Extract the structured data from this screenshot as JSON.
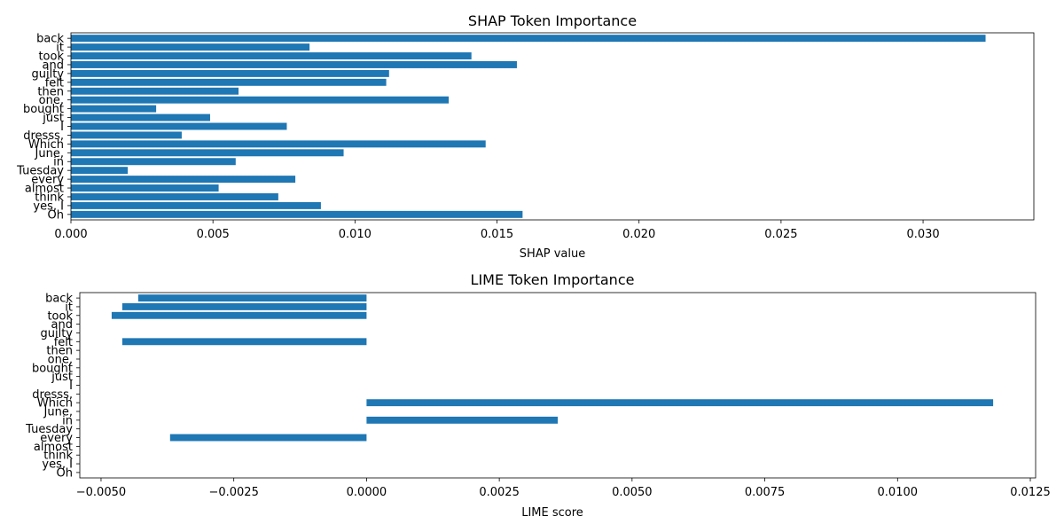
{
  "chart_data": [
    {
      "type": "bar",
      "orientation": "horizontal",
      "title": "SHAP Token Importance",
      "xlabel": "SHAP value",
      "ylabel": "",
      "xlim": [
        0,
        0.0339
      ],
      "xticks": [
        0.0,
        0.005,
        0.01,
        0.015,
        0.02,
        0.025,
        0.03
      ],
      "xtick_labels": [
        "0.000",
        "0.005",
        "0.010",
        "0.015",
        "0.020",
        "0.025",
        "0.030"
      ],
      "grid": false,
      "bar_color": "#1f77b4",
      "categories": [
        "back",
        "it",
        "took",
        "and",
        "guilty",
        "felt",
        "then",
        "one,",
        "bought",
        "just",
        "I",
        "dresss,",
        "Which",
        "June,",
        "in",
        "Tuesday",
        "every",
        "almost",
        "think",
        "yes, I",
        "Oh"
      ],
      "values": [
        0.0322,
        0.0084,
        0.0141,
        0.0157,
        0.0112,
        0.0111,
        0.0059,
        0.0133,
        0.003,
        0.0049,
        0.0076,
        0.0039,
        0.0146,
        0.0096,
        0.0058,
        0.002,
        0.0079,
        0.0052,
        0.0073,
        0.0088,
        0.0159
      ]
    },
    {
      "type": "bar",
      "orientation": "horizontal",
      "title": "LIME Token Importance",
      "xlabel": "LIME score",
      "ylabel": "",
      "xlim": [
        -0.0054,
        0.0126
      ],
      "xticks": [
        -0.005,
        -0.0025,
        0.0,
        0.0025,
        0.005,
        0.0075,
        0.01,
        0.0125
      ],
      "xtick_labels": [
        "−0.0050",
        "−0.0025",
        "0.0000",
        "0.0025",
        "0.0050",
        "0.0075",
        "0.0100",
        "0.0125"
      ],
      "grid": false,
      "bar_color": "#1f77b4",
      "categories": [
        "back",
        "it",
        "took",
        "and",
        "guilty",
        "felt",
        "then",
        "one,",
        "bought",
        "just",
        "I",
        "dresss,",
        "Which",
        "June,",
        "in",
        "Tuesday",
        "every",
        "almost",
        "think",
        "yes, I",
        "Oh"
      ],
      "values": [
        -0.0043,
        -0.0046,
        -0.0048,
        0.0,
        0.0,
        -0.0046,
        0.0,
        0.0,
        0.0,
        0.0,
        0.0,
        0.0,
        0.0118,
        0.0,
        0.0036,
        0.0,
        -0.0037,
        0.0,
        0.0,
        0.0,
        0.0
      ]
    }
  ]
}
